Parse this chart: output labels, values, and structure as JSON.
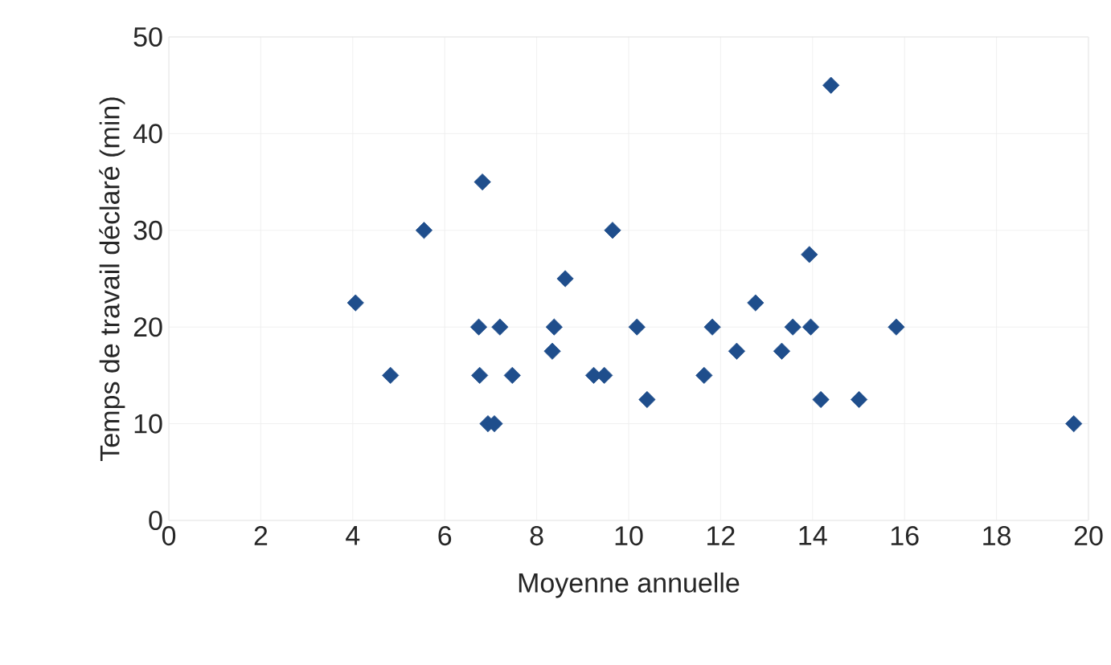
{
  "chart_data": {
    "type": "scatter",
    "xlabel": "Moyenne annuelle",
    "ylabel": "Temps de travail déclaré (min)",
    "xlim": [
      0,
      20
    ],
    "ylim": [
      0,
      50
    ],
    "xticks": [
      0,
      2,
      4,
      6,
      8,
      10,
      12,
      14,
      16,
      18,
      20
    ],
    "yticks": [
      0,
      10,
      20,
      30,
      40,
      50
    ],
    "grid": true,
    "marker": "diamond",
    "series": [
      {
        "color": "#1f4e8c",
        "x": [
          6.82,
          5.55,
          4.06,
          8.62,
          9.65,
          6.74,
          7.2,
          8.38,
          10.18,
          8.34,
          4.82,
          6.76,
          7.47,
          9.24,
          9.47,
          6.94,
          7.08,
          10.4,
          14.4,
          13.93,
          12.76,
          11.82,
          13.57,
          13.96,
          15.82,
          12.35,
          13.33,
          11.64,
          14.18,
          15.01,
          19.68
        ],
        "values": [
          35,
          30,
          22.5,
          25,
          30,
          20,
          20,
          20,
          20,
          17.5,
          15,
          15,
          15,
          15,
          15,
          10,
          10,
          12.5,
          45,
          27.5,
          22.5,
          20,
          20,
          20,
          20,
          17.5,
          17.5,
          15,
          12.5,
          12.5,
          10
        ]
      }
    ]
  }
}
